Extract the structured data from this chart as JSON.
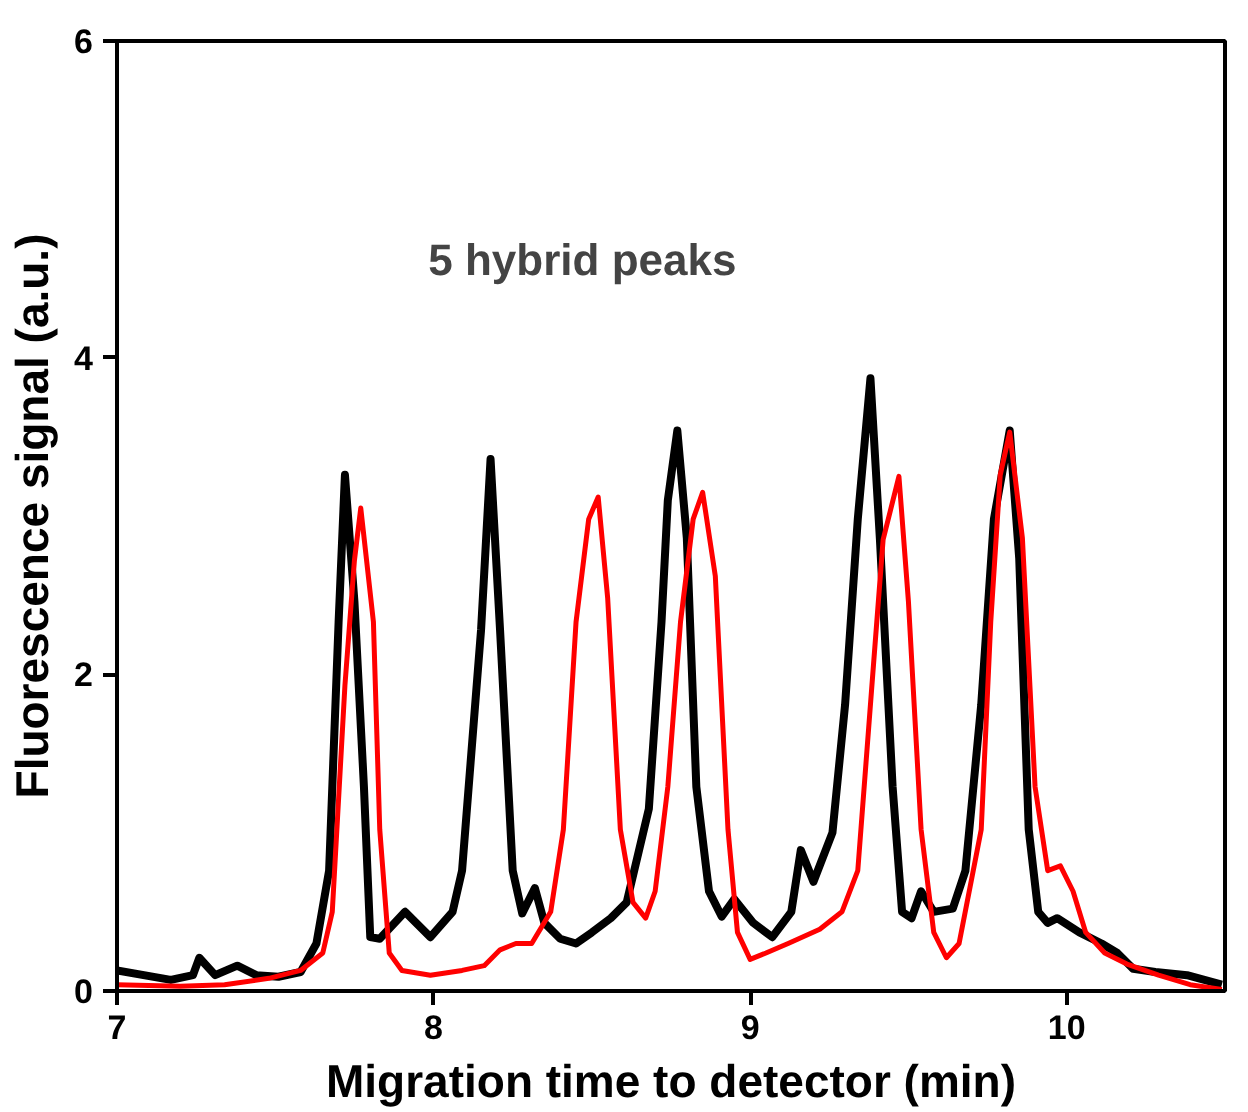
{
  "chart_data": {
    "type": "line",
    "xlabel": "Migration time to detector (min)",
    "ylabel": "Fluorescence signal (a.u.)",
    "annotations": [
      "5 hybrid peaks"
    ],
    "xlim": [
      7,
      10.5
    ],
    "ylim": [
      0,
      6
    ],
    "xticks": [
      7,
      8,
      9,
      10
    ],
    "yticks": [
      0,
      2,
      4,
      6
    ],
    "grid": false,
    "marker": "none",
    "line_style": "solid",
    "series": [
      {
        "color": "#000000",
        "x": [
          7.0,
          7.17,
          7.24,
          7.26,
          7.31,
          7.38,
          7.44,
          7.51,
          7.58,
          7.63,
          7.67,
          7.7,
          7.72,
          7.75,
          7.78,
          7.8,
          7.83,
          7.91,
          7.99,
          8.06,
          8.09,
          8.15,
          8.18,
          8.21,
          8.25,
          8.28,
          8.32,
          8.35,
          8.4,
          8.45,
          8.5,
          8.56,
          8.61,
          8.68,
          8.72,
          8.74,
          8.77,
          8.8,
          8.83,
          8.87,
          8.91,
          8.95,
          9.01,
          9.07,
          9.13,
          9.16,
          9.2,
          9.26,
          9.3,
          9.34,
          9.38,
          9.41,
          9.45,
          9.48,
          9.51,
          9.54,
          9.58,
          9.64,
          9.68,
          9.73,
          9.77,
          9.82,
          9.85,
          9.88,
          9.91,
          9.94,
          9.97,
          10.04,
          10.11,
          10.16,
          10.21,
          10.28,
          10.38,
          10.49
        ],
        "values": [
          0.13,
          0.07,
          0.1,
          0.21,
          0.1,
          0.16,
          0.1,
          0.09,
          0.12,
          0.3,
          0.76,
          2.33,
          3.26,
          2.46,
          1.29,
          0.34,
          0.33,
          0.5,
          0.34,
          0.5,
          0.76,
          2.28,
          3.36,
          2.28,
          0.76,
          0.49,
          0.65,
          0.43,
          0.33,
          0.3,
          0.37,
          0.46,
          0.56,
          1.15,
          2.33,
          3.1,
          3.54,
          2.86,
          1.29,
          0.63,
          0.47,
          0.58,
          0.43,
          0.34,
          0.5,
          0.89,
          0.69,
          1.0,
          1.81,
          2.98,
          3.87,
          2.85,
          1.29,
          0.5,
          0.46,
          0.63,
          0.5,
          0.52,
          0.76,
          1.81,
          2.98,
          3.54,
          2.73,
          1.02,
          0.5,
          0.43,
          0.46,
          0.37,
          0.3,
          0.24,
          0.14,
          0.12,
          0.1,
          0.04
        ]
      },
      {
        "color": "#ff0000",
        "x": [
          7.0,
          7.2,
          7.34,
          7.48,
          7.58,
          7.65,
          7.68,
          7.72,
          7.75,
          7.77,
          7.81,
          7.83,
          7.86,
          7.9,
          7.99,
          8.09,
          8.16,
          8.21,
          8.26,
          8.31,
          8.37,
          8.41,
          8.45,
          8.49,
          8.52,
          8.55,
          8.59,
          8.63,
          8.67,
          8.7,
          8.74,
          8.78,
          8.82,
          8.85,
          8.89,
          8.93,
          8.96,
          9.0,
          9.05,
          9.12,
          9.22,
          9.29,
          9.34,
          9.39,
          9.42,
          9.47,
          9.5,
          9.54,
          9.58,
          9.62,
          9.66,
          9.73,
          9.76,
          9.79,
          9.82,
          9.86,
          9.9,
          9.94,
          9.98,
          10.02,
          10.06,
          10.12,
          10.19,
          10.29,
          10.39,
          10.49
        ],
        "values": [
          0.04,
          0.03,
          0.04,
          0.08,
          0.13,
          0.24,
          0.5,
          1.93,
          2.72,
          3.05,
          2.33,
          1.02,
          0.24,
          0.13,
          0.1,
          0.13,
          0.16,
          0.26,
          0.3,
          0.3,
          0.5,
          1.02,
          2.33,
          2.98,
          3.12,
          2.48,
          1.02,
          0.56,
          0.46,
          0.63,
          1.29,
          2.33,
          2.98,
          3.15,
          2.62,
          1.02,
          0.37,
          0.2,
          0.24,
          0.3,
          0.39,
          0.5,
          0.76,
          2.07,
          2.85,
          3.25,
          2.46,
          1.02,
          0.37,
          0.21,
          0.3,
          1.02,
          2.33,
          3.26,
          3.53,
          2.86,
          1.29,
          0.76,
          0.79,
          0.63,
          0.37,
          0.24,
          0.17,
          0.1,
          0.04,
          0.01
        ]
      }
    ]
  }
}
